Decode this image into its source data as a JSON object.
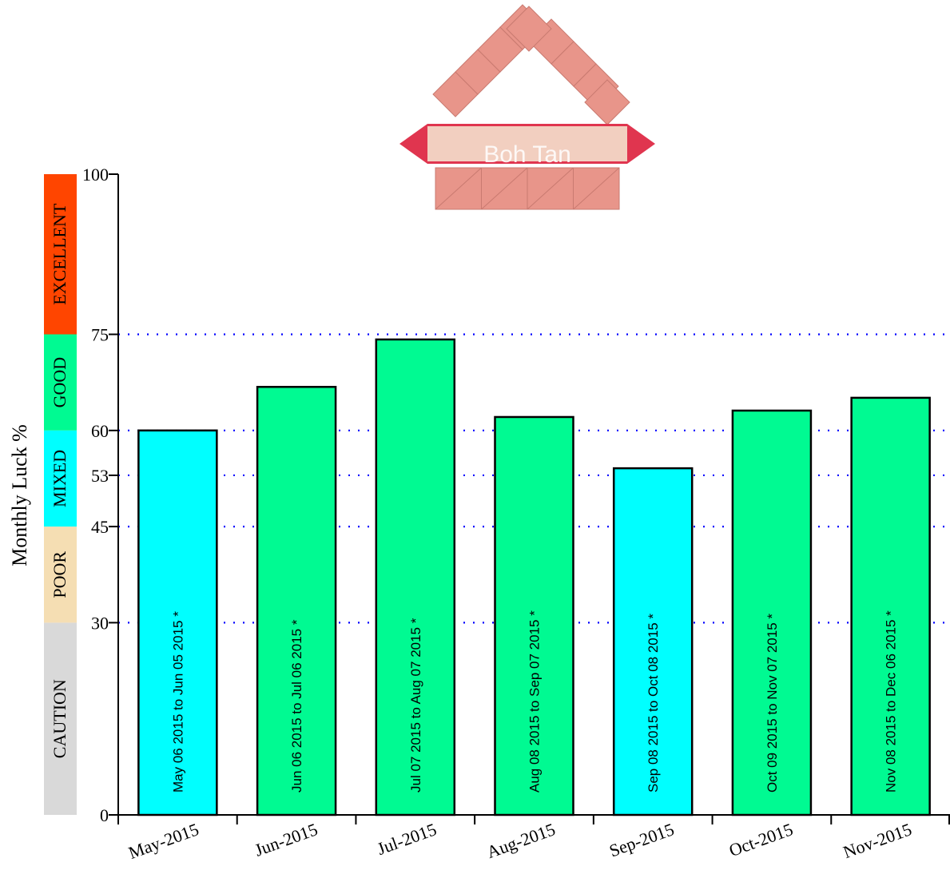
{
  "watermark": {
    "text": "Boh Tan",
    "brick_color": "#e8958a",
    "ribbon_color": "#e0354f",
    "panel_color": "#f2cfc0"
  },
  "chart_data": {
    "type": "bar",
    "title": "",
    "xlabel": "",
    "ylabel": "Monthly Luck %",
    "ylim": [
      0,
      100
    ],
    "yticks": [
      0,
      30,
      45,
      53,
      60,
      75,
      100
    ],
    "reference_lines": [
      30,
      45,
      53,
      60,
      75
    ],
    "reference_line_color": "#0000ff",
    "grid": false,
    "categories": [
      "May-2015",
      "Jun-2015",
      "Jul-2015",
      "Aug-2015",
      "Sep-2015",
      "Oct-2015",
      "Nov-2015"
    ],
    "values": [
      60,
      66.8,
      74.2,
      62.1,
      54.1,
      63.1,
      65.1
    ],
    "bar_labels": [
      "May 06 2015 to Jun 05 2015 *",
      "Jun 06 2015 to Jul 06 2015 *",
      "Jul 07 2015 to Aug 07 2015 *",
      "Aug 08 2015 to Sep 07 2015 *",
      "Sep 08 2015 to Oct 08 2015 *",
      "Oct 09 2015 to Nov 07 2015 *",
      "Nov 08 2015 to Dec 06 2015 *"
    ],
    "bar_colors": [
      "#00ffff",
      "#00fa92",
      "#00fa92",
      "#00fa92",
      "#00ffff",
      "#00fa92",
      "#00fa92"
    ],
    "bands": [
      {
        "label": "CAUTION",
        "from": 0,
        "to": 30,
        "color": "#d9d9d9"
      },
      {
        "label": "POOR",
        "from": 30,
        "to": 45,
        "color": "#f5deb3"
      },
      {
        "label": "MIXED",
        "from": 45,
        "to": 60,
        "color": "#00ffff"
      },
      {
        "label": "GOOD",
        "from": 60,
        "to": 75,
        "color": "#00fa92"
      },
      {
        "label": "EXCELLENT",
        "from": 75,
        "to": 100,
        "color": "#ff4500"
      }
    ]
  }
}
